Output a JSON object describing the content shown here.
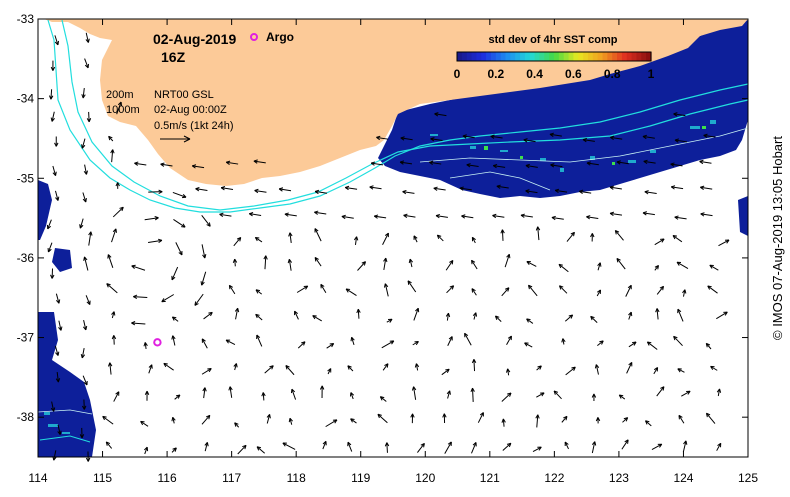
{
  "map": {
    "date": "02-Aug-2019",
    "time": "16Z",
    "argo_label": "Argo",
    "contour_200_label": "200m",
    "contour_1000_label": "1000m",
    "product_label": "NRT00 GSL",
    "product_date": "02-Aug 00:00Z",
    "scale_label": "0.5m/s (1kt 24h)",
    "copyright": "© IMOS 07-Aug-2019 13:05 Hobart",
    "lon_ticks": [
      "114",
      "115",
      "116",
      "117",
      "118",
      "119",
      "120",
      "121",
      "122",
      "123",
      "124",
      "125"
    ],
    "lat_ticks": [
      "-33",
      "-34",
      "-35",
      "-36",
      "-37",
      "-38"
    ],
    "argo_float": {
      "lon": 115.85,
      "lat": -37.06
    },
    "colors": {
      "land": "#fcca98",
      "sst_ocean": "#0d1f9a",
      "bathy_contour": "#22dede",
      "argo_marker": "#e020e0",
      "arrow": "#000000"
    }
  },
  "colorbar": {
    "title": "std dev of 4hr SST comp",
    "ticks": [
      "0",
      "0.2",
      "0.4",
      "0.6",
      "0.8",
      "1"
    ],
    "colors": [
      "#1a1a8c",
      "#1c2ee0",
      "#1e8cf0",
      "#22d8d8",
      "#44d844",
      "#e8e820",
      "#f0a020",
      "#e03020",
      "#8c1010"
    ]
  }
}
